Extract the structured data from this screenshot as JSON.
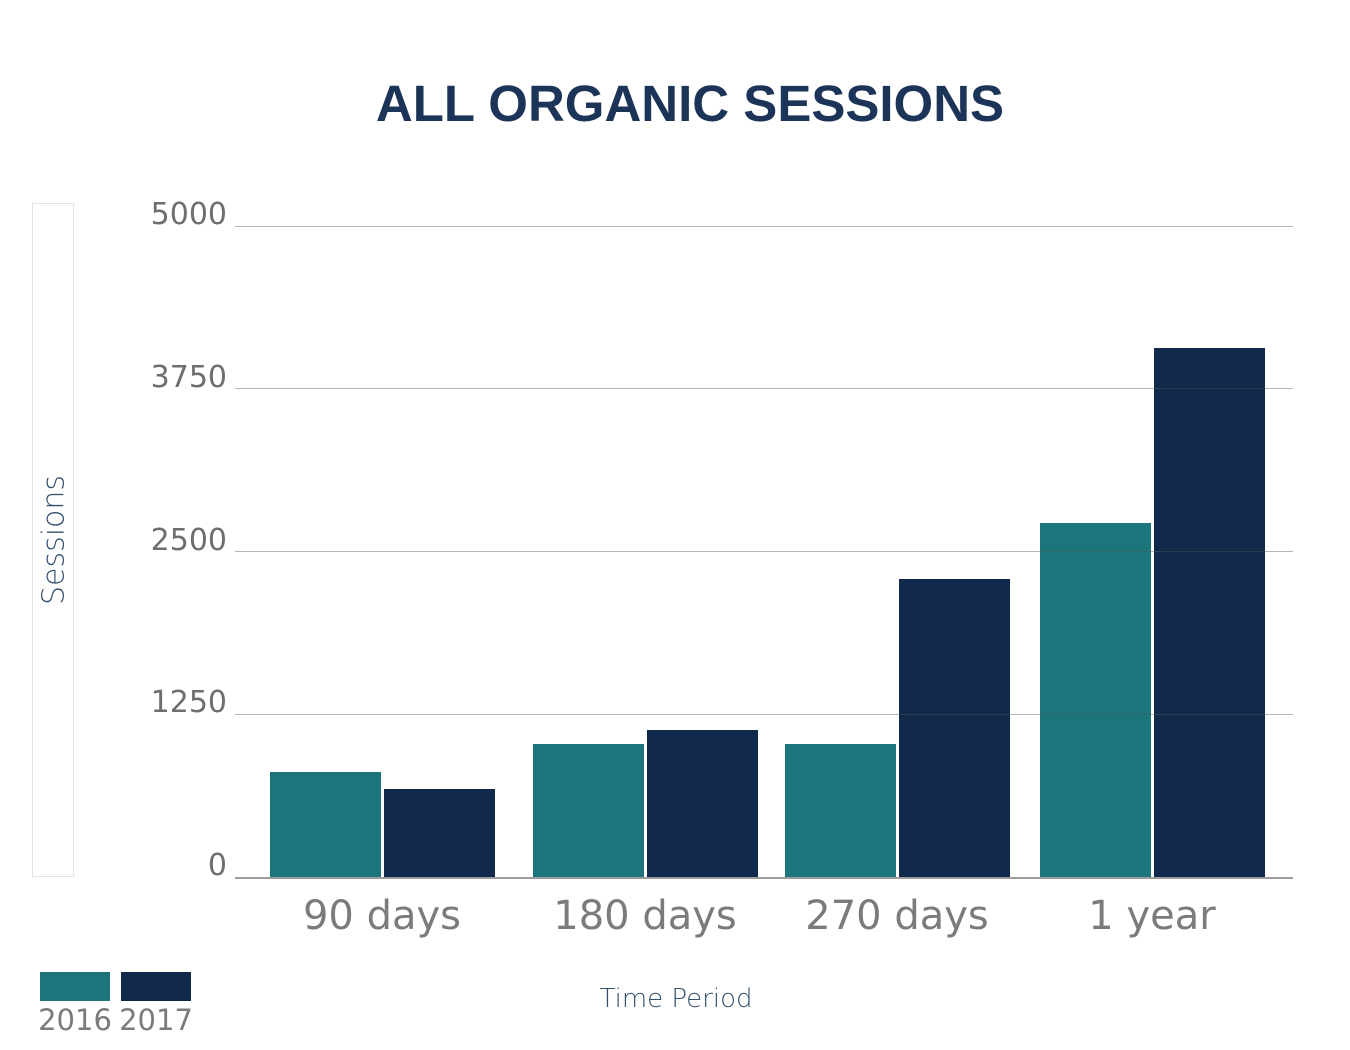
{
  "chart_data": {
    "type": "bar",
    "title": "ALL ORGANIC SESSIONS",
    "categories": [
      "90 days",
      "180 days",
      "270 days",
      "1 year"
    ],
    "series": [
      {
        "name": "2016",
        "color": "#1c757a",
        "values": [
          810,
          1020,
          1020,
          2720
        ]
      },
      {
        "name": "2017",
        "color": "#112a4b",
        "values": [
          675,
          1130,
          2290,
          4060
        ]
      }
    ],
    "xlabel": "Time Period",
    "ylabel": "Sessions",
    "ylim": [
      0,
      5000
    ],
    "yticks": [
      0,
      1250,
      2500,
      3750,
      5000
    ],
    "grid": true,
    "legend_position": "bottom-left"
  },
  "colors": {
    "title": "#1b3458",
    "axis_title": "#33506d",
    "y_tick_label": "#6e6e6e",
    "x_tick_label": "#7b7b7b",
    "series_2016": "#1c757a",
    "series_2017": "#112a4b",
    "gridline": "#c4c4c4",
    "baseline": "#9c9c9c",
    "band_border": "#e2e2e2"
  }
}
